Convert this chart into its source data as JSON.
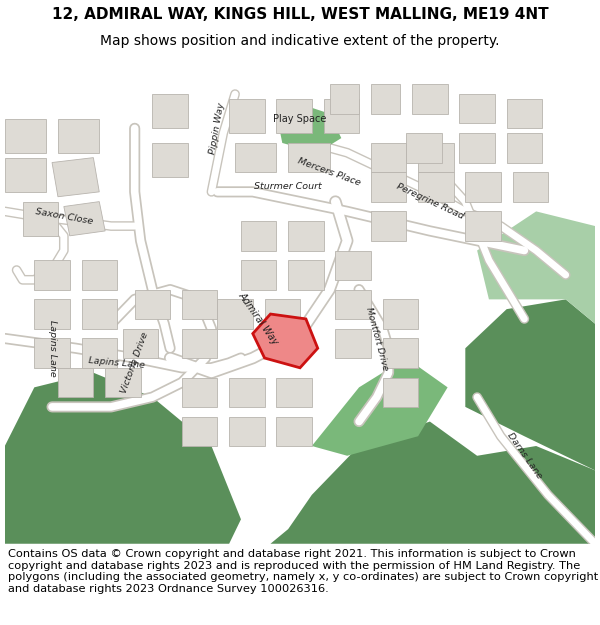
{
  "title_line1": "12, ADMIRAL WAY, KINGS HILL, WEST MALLING, ME19 4NT",
  "title_line2": "Map shows position and indicative extent of the property.",
  "footer_text": "Contains OS data © Crown copyright and database right 2021. This information is subject to Crown copyright and database rights 2023 and is reproduced with the permission of HM Land Registry. The polygons (including the associated geometry, namely x, y co-ordinates) are subject to Crown copyright and database rights 2023 Ordnance Survey 100026316.",
  "bg_color": "#ffffff",
  "map_bg": "#f5f3f0",
  "building_color": "#dedbd5",
  "building_outline": "#b8b4ae",
  "green_dark": "#5a8f5a",
  "green_mid": "#7ab87a",
  "green_light": "#a8cfa8",
  "road_color": "#ffffff",
  "road_outline": "#c8c4bc",
  "highlight_color": "#cc1111",
  "highlight_fill": "#ee8888",
  "title_fontsize": 11,
  "subtitle_fontsize": 10,
  "footer_fontsize": 8.2
}
